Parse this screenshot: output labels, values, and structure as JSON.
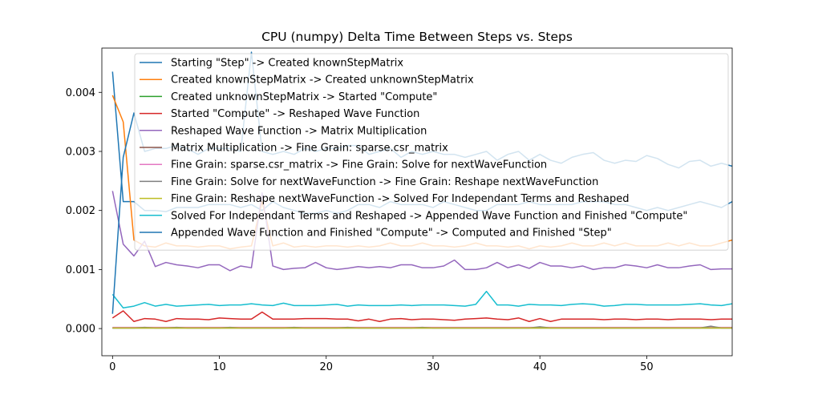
{
  "chart_data": {
    "type": "line",
    "title": "CPU (numpy) Delta Time Between Steps vs. Steps",
    "xlabel": "",
    "ylabel": "",
    "xlim": [
      -1,
      58
    ],
    "ylim": [
      -0.00046,
      0.00475
    ],
    "xticks": [
      0,
      10,
      20,
      30,
      40,
      50
    ],
    "yticks": [
      0.0,
      0.001,
      0.002,
      0.003,
      0.004
    ],
    "ytick_labels": [
      "0.000",
      "0.001",
      "0.002",
      "0.003",
      "0.004"
    ],
    "legend_position": "upper center",
    "grid": false,
    "series": [
      {
        "name": "Starting \"Step\" -> Created knownStepMatrix",
        "color": "#1f77b4",
        "values": [
          0.00435,
          0.00215,
          0.00215,
          0.002,
          0.002,
          0.00198,
          0.00205,
          0.00205,
          0.00205,
          0.0021,
          0.0021,
          0.0021,
          0.00205,
          0.0021,
          0.002,
          0.00215,
          0.00205,
          0.002,
          0.00195,
          0.00195,
          0.002,
          0.00195,
          0.002,
          0.0021,
          0.0021,
          0.00205,
          0.00215,
          0.0021,
          0.0021,
          0.0021,
          0.00205,
          0.00215,
          0.0021,
          0.00205,
          0.002,
          0.002,
          0.0021,
          0.0021,
          0.0021,
          0.00215,
          0.0021,
          0.0021,
          0.0021,
          0.0021,
          0.00215,
          0.00215,
          0.00215,
          0.0021,
          0.0021,
          0.00205,
          0.002,
          0.00205,
          0.002,
          0.00205,
          0.0021,
          0.00215,
          0.0021,
          0.00205,
          0.00215
        ]
      },
      {
        "name": "Created knownStepMatrix -> Created unknownStepMatrix",
        "color": "#ff7f0e",
        "values": [
          0.00395,
          0.0035,
          0.0015,
          0.0014,
          0.00138,
          0.00145,
          0.0014,
          0.0014,
          0.00138,
          0.0014,
          0.0014,
          0.00135,
          0.00138,
          0.0014,
          0.00215,
          0.0014,
          0.00145,
          0.00138,
          0.0014,
          0.00138,
          0.0014,
          0.0014,
          0.00138,
          0.0014,
          0.00138,
          0.0014,
          0.00145,
          0.0014,
          0.0014,
          0.00145,
          0.0014,
          0.0014,
          0.00138,
          0.0014,
          0.00145,
          0.0014,
          0.0014,
          0.00138,
          0.0014,
          0.00135,
          0.0014,
          0.00138,
          0.0014,
          0.00145,
          0.0014,
          0.0014,
          0.00145,
          0.0014,
          0.00145,
          0.0014,
          0.0014,
          0.0014,
          0.00145,
          0.0014,
          0.00145,
          0.0014,
          0.0014,
          0.00145,
          0.0015
        ]
      },
      {
        "name": "Created unknownStepMatrix -> Started \"Compute\"",
        "color": "#2ca02c",
        "values": [
          1e-05,
          1e-05,
          1e-05,
          1e-05,
          1e-05,
          1e-05,
          1e-05,
          1e-05,
          1e-05,
          1e-05,
          1e-05,
          1e-05,
          1e-05,
          1e-05,
          1e-05,
          1e-05,
          1e-05,
          1e-05,
          1e-05,
          1e-05,
          1e-05,
          1e-05,
          1e-05,
          1e-05,
          1e-05,
          1e-05,
          1e-05,
          1e-05,
          1e-05,
          1e-05,
          1e-05,
          1e-05,
          1e-05,
          1e-05,
          1e-05,
          1e-05,
          1e-05,
          1e-05,
          1e-05,
          1e-05,
          1e-05,
          1e-05,
          1e-05,
          1e-05,
          1e-05,
          1e-05,
          1e-05,
          1e-05,
          1e-05,
          1e-05,
          1e-05,
          1e-05,
          1e-05,
          1e-05,
          1e-05,
          1e-05,
          1e-05,
          1e-05,
          1e-05
        ]
      },
      {
        "name": "Started \"Compute\" -> Reshaped Wave Function",
        "color": "#d62728",
        "values": [
          0.00018,
          0.0003,
          0.00012,
          0.00017,
          0.00016,
          0.00012,
          0.00017,
          0.00016,
          0.00016,
          0.00015,
          0.00018,
          0.00017,
          0.00016,
          0.00016,
          0.00028,
          0.00016,
          0.00016,
          0.00016,
          0.00017,
          0.00017,
          0.00017,
          0.00016,
          0.00016,
          0.00013,
          0.00016,
          0.00012,
          0.00016,
          0.00017,
          0.00015,
          0.00016,
          0.00016,
          0.00015,
          0.00014,
          0.00016,
          0.00017,
          0.00018,
          0.00016,
          0.00015,
          0.00018,
          0.00012,
          0.00017,
          0.00012,
          0.00016,
          0.00016,
          0.00016,
          0.00016,
          0.00015,
          0.00016,
          0.00016,
          0.00015,
          0.00016,
          0.00016,
          0.00015,
          0.00016,
          0.00016,
          0.00016,
          0.00015,
          0.00016,
          0.00016
        ]
      },
      {
        "name": "Reshaped Wave Function -> Matrix Multiplication",
        "color": "#9467bd",
        "values": [
          0.00233,
          0.00143,
          0.00123,
          0.00148,
          0.00105,
          0.00112,
          0.00108,
          0.00106,
          0.00103,
          0.00108,
          0.00108,
          0.00098,
          0.00106,
          0.00103,
          0.0023,
          0.00106,
          0.001,
          0.00102,
          0.00103,
          0.00112,
          0.00103,
          0.001,
          0.00102,
          0.00105,
          0.00103,
          0.00105,
          0.00103,
          0.00108,
          0.00108,
          0.00103,
          0.00103,
          0.00106,
          0.00116,
          0.001,
          0.001,
          0.00103,
          0.00112,
          0.00103,
          0.00108,
          0.00102,
          0.00112,
          0.00106,
          0.00106,
          0.00103,
          0.00106,
          0.001,
          0.00103,
          0.00103,
          0.00108,
          0.00106,
          0.00103,
          0.00108,
          0.00103,
          0.00103,
          0.00106,
          0.00108,
          0.001,
          0.00101,
          0.00101
        ]
      },
      {
        "name": "Matrix Multiplication -> Fine Grain: sparse.csr_matrix",
        "color": "#8c564b",
        "values": [
          1e-05,
          1e-05,
          1e-05,
          1e-05,
          1e-05,
          1e-05,
          1e-05,
          1e-05,
          1e-05,
          1e-05,
          1e-05,
          1e-05,
          1e-05,
          1e-05,
          1e-05,
          1e-05,
          1e-05,
          1e-05,
          1e-05,
          1e-05,
          1e-05,
          1e-05,
          1e-05,
          1e-05,
          1e-05,
          1e-05,
          1e-05,
          1e-05,
          1e-05,
          1e-05,
          1e-05,
          1e-05,
          1e-05,
          1e-05,
          1e-05,
          1e-05,
          1e-05,
          1e-05,
          1e-05,
          1e-05,
          1e-05,
          1e-05,
          1e-05,
          1e-05,
          1e-05,
          1e-05,
          1e-05,
          1e-05,
          1e-05,
          1e-05,
          1e-05,
          1e-05,
          1e-05,
          1e-05,
          1e-05,
          1e-05,
          1e-05,
          1e-05,
          1e-05
        ]
      },
      {
        "name": "Fine Grain: sparse.csr_matrix -> Fine Grain: Solve for nextWaveFunction",
        "color": "#e377c2",
        "values": [
          2e-05,
          2e-05,
          2e-05,
          2e-05,
          2e-05,
          2e-05,
          2e-05,
          2e-05,
          2e-05,
          2e-05,
          2e-05,
          2e-05,
          2e-05,
          2e-05,
          2e-05,
          2e-05,
          2e-05,
          2e-05,
          2e-05,
          2e-05,
          2e-05,
          2e-05,
          2e-05,
          2e-05,
          2e-05,
          2e-05,
          2e-05,
          2e-05,
          2e-05,
          2e-05,
          2e-05,
          2e-05,
          2e-05,
          2e-05,
          2e-05,
          2e-05,
          2e-05,
          2e-05,
          2e-05,
          2e-05,
          2e-05,
          2e-05,
          2e-05,
          2e-05,
          2e-05,
          2e-05,
          2e-05,
          2e-05,
          2e-05,
          2e-05,
          2e-05,
          2e-05,
          2e-05,
          2e-05,
          2e-05,
          2e-05,
          2e-05,
          2e-05,
          2e-05
        ]
      },
      {
        "name": "Fine Grain: Solve for nextWaveFunction -> Fine Grain: Reshape nextWaveFunction",
        "color": "#7f7f7f",
        "values": [
          1e-05,
          1e-05,
          1e-05,
          2e-05,
          1e-05,
          1e-05,
          2e-05,
          1e-05,
          1e-05,
          1e-05,
          1e-05,
          2e-05,
          1e-05,
          1e-05,
          1e-05,
          1e-05,
          1e-05,
          2e-05,
          1e-05,
          1e-05,
          1e-05,
          1e-05,
          2e-05,
          1e-05,
          1e-05,
          1e-05,
          1e-05,
          1e-05,
          1e-05,
          2e-05,
          1e-05,
          1e-05,
          1e-05,
          1e-05,
          1e-05,
          1e-05,
          1e-05,
          1e-05,
          1e-05,
          1e-05,
          3e-05,
          1e-05,
          1e-05,
          1e-05,
          1e-05,
          1e-05,
          1e-05,
          1e-05,
          1e-05,
          1e-05,
          1e-05,
          1e-05,
          1e-05,
          1e-05,
          1e-05,
          1e-05,
          4e-05,
          1e-05,
          1e-05
        ]
      },
      {
        "name": "Fine Grain: Reshape nextWaveFunction -> Solved For Independant Terms and Reshaped",
        "color": "#bcbd22",
        "values": [
          1e-05,
          1e-05,
          1e-05,
          1e-05,
          1e-05,
          1e-05,
          1e-05,
          1e-05,
          1e-05,
          1e-05,
          1e-05,
          1e-05,
          1e-05,
          1e-05,
          1e-05,
          1e-05,
          1e-05,
          1e-05,
          1e-05,
          1e-05,
          1e-05,
          1e-05,
          1e-05,
          1e-05,
          1e-05,
          1e-05,
          1e-05,
          1e-05,
          1e-05,
          1e-05,
          1e-05,
          1e-05,
          1e-05,
          1e-05,
          1e-05,
          1e-05,
          1e-05,
          1e-05,
          1e-05,
          1e-05,
          1e-05,
          1e-05,
          1e-05,
          1e-05,
          1e-05,
          1e-05,
          1e-05,
          1e-05,
          1e-05,
          1e-05,
          1e-05,
          1e-05,
          1e-05,
          1e-05,
          1e-05,
          1e-05,
          1e-05,
          1e-05,
          1e-05
        ]
      },
      {
        "name": "Solved For Independant Terms and Reshaped -> Appended Wave Function and Finished \"Compute\"",
        "color": "#17becf",
        "values": [
          0.00058,
          0.00035,
          0.00038,
          0.00044,
          0.00038,
          0.00041,
          0.00038,
          0.00039,
          0.0004,
          0.00041,
          0.00039,
          0.0004,
          0.0004,
          0.00042,
          0.0004,
          0.00039,
          0.00043,
          0.00039,
          0.00039,
          0.00039,
          0.0004,
          0.00041,
          0.00038,
          0.0004,
          0.00039,
          0.00039,
          0.00039,
          0.0004,
          0.00039,
          0.0004,
          0.0004,
          0.0004,
          0.00039,
          0.00038,
          0.00041,
          0.00063,
          0.0004,
          0.0004,
          0.00038,
          0.00041,
          0.0004,
          0.0004,
          0.00039,
          0.00041,
          0.00042,
          0.00041,
          0.00038,
          0.00039,
          0.00041,
          0.00041,
          0.0004,
          0.0004,
          0.0004,
          0.0004,
          0.00041,
          0.00042,
          0.0004,
          0.00039,
          0.00042
        ]
      },
      {
        "name": "Appended Wave Function and Finished \"Compute\" -> Computed and Finished \"Step\"",
        "color": "#1f77b4",
        "values": [
          0.00025,
          0.0029,
          0.00365,
          0.003,
          0.00305,
          0.00305,
          0.0031,
          0.00305,
          0.00295,
          0.00305,
          0.00305,
          0.00305,
          0.003,
          0.00468,
          0.003,
          0.00295,
          0.003,
          0.00295,
          0.00305,
          0.003,
          0.00305,
          0.00305,
          0.0031,
          0.0031,
          0.00295,
          0.003,
          0.00305,
          0.0029,
          0.003,
          0.00295,
          0.003,
          0.00295,
          0.00295,
          0.0029,
          0.00295,
          0.003,
          0.00285,
          0.00295,
          0.003,
          0.00285,
          0.00295,
          0.00285,
          0.0028,
          0.0029,
          0.00295,
          0.00298,
          0.00285,
          0.0028,
          0.00285,
          0.00283,
          0.00293,
          0.00288,
          0.00278,
          0.00272,
          0.00283,
          0.00285,
          0.00275,
          0.0028,
          0.00275
        ]
      }
    ]
  }
}
